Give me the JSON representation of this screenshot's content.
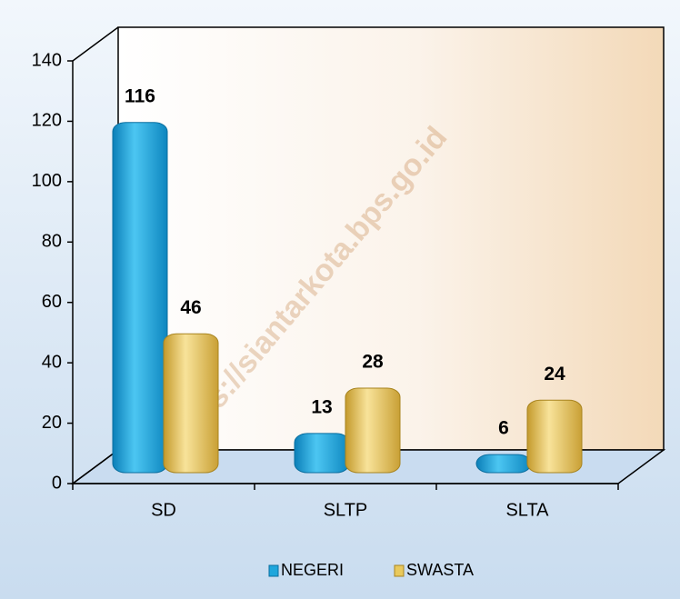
{
  "chart_data": {
    "type": "bar",
    "categories": [
      "SD",
      "SLTP",
      "SLTA"
    ],
    "series": [
      {
        "name": "NEGERI",
        "color": "#1ea6dc",
        "values": [
          116,
          13,
          6
        ]
      },
      {
        "name": "SWASTA",
        "color": "#e9c95c",
        "values": [
          46,
          28,
          24
        ]
      }
    ],
    "ylim": [
      0,
      140
    ],
    "yticks": [
      0,
      20,
      40,
      60,
      80,
      100,
      120,
      140
    ],
    "legend": "bottom",
    "watermark": "https://siantarkota.bps.go.id"
  }
}
